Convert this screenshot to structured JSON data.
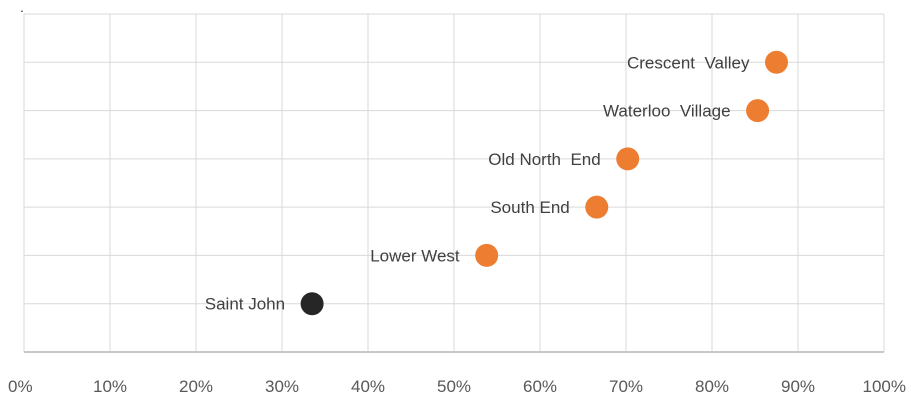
{
  "chart_data": {
    "type": "scatter",
    "title": "",
    "xlabel": "",
    "ylabel": "",
    "xlim": [
      0,
      100
    ],
    "x_unit": "%",
    "x_ticks": [
      "0%",
      "10%",
      "20%",
      "30%",
      "40%",
      "50%",
      "60%",
      "70%",
      "80%",
      "90%",
      "100%"
    ],
    "grid": true,
    "legend": "none",
    "stray_mark": ".",
    "points": [
      {
        "label": "Crescent  Valley",
        "x": 87.5,
        "rank": 6,
        "color": "#ed7d31"
      },
      {
        "label": "Waterloo  Village",
        "x": 85.3,
        "rank": 5,
        "color": "#ed7d31"
      },
      {
        "label": "Old North  End",
        "x": 70.2,
        "rank": 4,
        "color": "#ed7d31"
      },
      {
        "label": "South End",
        "x": 66.6,
        "rank": 3,
        "color": "#ed7d31"
      },
      {
        "label": "Lower West",
        "x": 53.8,
        "rank": 2,
        "color": "#ed7d31"
      },
      {
        "label": "Saint John",
        "x": 33.5,
        "rank": 1,
        "color": "#262626"
      }
    ]
  }
}
